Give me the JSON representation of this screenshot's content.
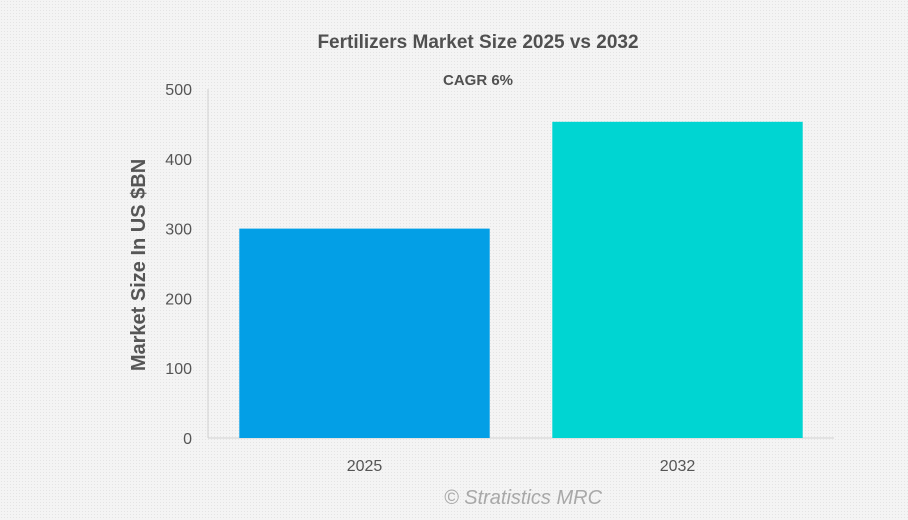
{
  "chart_data": {
    "type": "bar",
    "title": "Fertilizers Market Size 2025 vs 2032",
    "subtitle": "CAGR 6%",
    "xlabel": "",
    "ylabel": "Market Size In US $BN",
    "categories": [
      "2025",
      "2032"
    ],
    "values": [
      300,
      453
    ],
    "colors": [
      "#039fe6",
      "#00d5d2"
    ],
    "ylim": [
      0,
      500
    ],
    "yticks": [
      0,
      100,
      200,
      300,
      400,
      500
    ],
    "grid": false,
    "legend": "none"
  },
  "watermark": "© Stratistics MRC"
}
